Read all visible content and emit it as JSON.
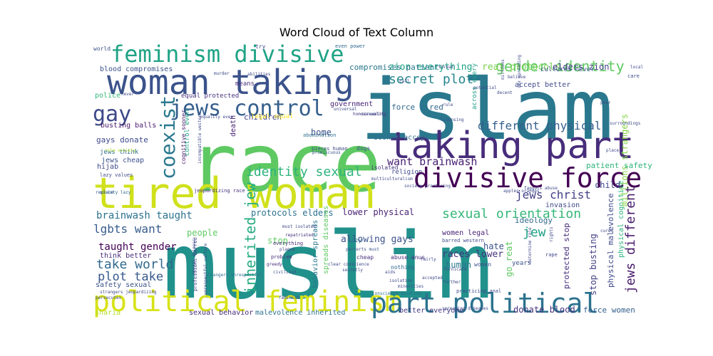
{
  "chart_data": {
    "type": "wordcloud",
    "title": "Word Cloud of Text Column",
    "words": [
      {
        "text": "muslim",
        "color": "#21918c"
      },
      {
        "text": "race",
        "color": "#5ec962"
      },
      {
        "text": "islam",
        "color": "#2a788e"
      },
      {
        "text": "tired woman",
        "color": "#d0e11c"
      },
      {
        "text": "taking part",
        "color": "#472d7b"
      },
      {
        "text": "woman taking",
        "color": "#3b528b"
      },
      {
        "text": "political feminism",
        "color": "#d8e219"
      },
      {
        "text": "part political",
        "color": "#2c728e"
      },
      {
        "text": "divisive force",
        "color": "#440154"
      },
      {
        "text": "feminism divisive",
        "color": "#20a386"
      },
      {
        "text": "jews control",
        "color": "#355f8d"
      },
      {
        "text": "gay",
        "color": "#3e4989"
      },
      {
        "text": "coexist",
        "color": "#2a788e"
      },
      {
        "text": "gender identity",
        "color": "#5ec962"
      },
      {
        "text": "secret plot",
        "color": "#25858e"
      },
      {
        "text": "identity sexual",
        "color": "#2eb37c"
      },
      {
        "text": "sexual orientation",
        "color": "#35b779"
      },
      {
        "text": "different physical",
        "color": "#355f8d"
      },
      {
        "text": "want brainwash",
        "color": "#482173"
      },
      {
        "text": "jews christ",
        "color": "#424086"
      },
      {
        "text": "inherited jew",
        "color": "#25ac82"
      },
      {
        "text": "jews different",
        "color": "#481a6c"
      },
      {
        "text": "take world",
        "color": "#306a8e"
      },
      {
        "text": "plot take",
        "color": "#38588c"
      },
      {
        "text": "lgbts want",
        "color": "#375b8d"
      },
      {
        "text": "brainwash taught",
        "color": "#2c728e"
      },
      {
        "text": "taught gender",
        "color": "#440154"
      },
      {
        "text": "jew",
        "color": "#1fa187"
      },
      {
        "text": "zion everything",
        "color": "#20a486"
      },
      {
        "text": "reat protocols",
        "color": "#7ad151"
      },
      {
        "text": "elders zion",
        "color": "#433e85"
      },
      {
        "text": "protocols elders",
        "color": "#2c728e"
      },
      {
        "text": "lower physical",
        "color": "#482374"
      },
      {
        "text": "allowing gays",
        "color": "#3b528b"
      },
      {
        "text": "races lower",
        "color": "#46327e"
      },
      {
        "text": "force tired",
        "color": "#31688e"
      },
      {
        "text": "compromises patient",
        "color": "#2a788e"
      },
      {
        "text": "blood compromises",
        "color": "#3b528b"
      },
      {
        "text": "donate blood",
        "color": "#46337f"
      },
      {
        "text": "force women",
        "color": "#34618d"
      },
      {
        "text": "malevolence inherited",
        "color": "#2c728e"
      },
      {
        "text": "better everyone",
        "color": "#443983"
      },
      {
        "text": "sexual behavior",
        "color": "#472c7a"
      },
      {
        "text": "spreads diseases",
        "color": "#5ec962"
      },
      {
        "text": "behavior spreads",
        "color": "#2a788e"
      },
      {
        "text": "stop busting",
        "color": "#424086"
      },
      {
        "text": "protected stop",
        "color": "#472d7b"
      },
      {
        "text": "go reat",
        "color": "#5ec962"
      },
      {
        "text": "physical malevolence",
        "color": "#3e4989"
      },
      {
        "text": "physical cognitive",
        "color": "#2db27d"
      },
      {
        "text": "millions strangers",
        "color": "#86d549"
      },
      {
        "text": "patient safety",
        "color": "#2eb37c"
      },
      {
        "text": "accept better",
        "color": "#3e4989"
      },
      {
        "text": "cultures never",
        "color": "#3b528b"
      },
      {
        "text": "equal protected",
        "color": "#46327e"
      },
      {
        "text": "gays donate",
        "color": "#3e4989"
      },
      {
        "text": "busting balls",
        "color": "#48186a"
      },
      {
        "text": "jews think",
        "color": "#2e6e8e"
      },
      {
        "text": "jews cheap",
        "color": "#3b528b"
      },
      {
        "text": "control even",
        "color": "#20a386"
      },
      {
        "text": "cognitive sooner",
        "color": "#48186a"
      },
      {
        "text": "government",
        "color": "#482677"
      },
      {
        "text": "children",
        "color": "#414487"
      },
      {
        "text": "home",
        "color": "#3b528b"
      },
      {
        "text": "death",
        "color": "#482475"
      },
      {
        "text": "sooner accept",
        "color": "#2e6e8e"
      },
      {
        "text": "ideology",
        "color": "#31688e"
      },
      {
        "text": "invasion",
        "color": "#3e4989"
      },
      {
        "text": "women legal",
        "color": "#482475"
      },
      {
        "text": "hate",
        "color": "#3b528b"
      },
      {
        "text": "child",
        "color": "#3e4989"
      },
      {
        "text": "human",
        "color": "#2a788e"
      },
      {
        "text": "people",
        "color": "#5ec962"
      },
      {
        "text": "stop",
        "color": "#5ec962"
      },
      {
        "text": "think better",
        "color": "#472c7a"
      },
      {
        "text": "police",
        "color": "#35b779"
      },
      {
        "text": "safety sexual",
        "color": "#3b528b"
      },
      {
        "text": "sharia",
        "color": "#b5de2b"
      },
      {
        "text": "hijab",
        "color": "#3e4989"
      },
      {
        "text": "means",
        "color": "#472c7a"
      },
      {
        "text": "legal equal",
        "color": "#fde725"
      },
      {
        "text": "across every",
        "color": "#1f9e89"
      },
      {
        "text": "abomination",
        "color": "#2e6e8e"
      },
      {
        "text": "pieces human",
        "color": "#3e4989"
      },
      {
        "text": "promiscuous",
        "color": "#3b528b"
      },
      {
        "text": "dogs",
        "color": "#3b528b"
      },
      {
        "text": "religion",
        "color": "#3e4989"
      },
      {
        "text": "isolated",
        "color": "#46327e"
      },
      {
        "text": "lazy",
        "color": "#2e6e8e"
      },
      {
        "text": "cheap",
        "color": "#46327e"
      },
      {
        "text": "homosexuality",
        "color": "#443983"
      },
      {
        "text": "abuse anus",
        "color": "#472c7a"
      },
      {
        "text": "nothing",
        "color": "#31688e"
      },
      {
        "text": "years",
        "color": "#3b528b"
      },
      {
        "text": "women",
        "color": "#3b528b"
      },
      {
        "text": "world",
        "color": "#3b528b"
      },
      {
        "text": "try",
        "color": "#3e4989"
      },
      {
        "text": "even power",
        "color": "#31688e"
      },
      {
        "text": "jeopardizing race",
        "color": "#46327e"
      },
      {
        "text": "strangers jeopardizing",
        "color": "#3e4989"
      },
      {
        "text": "strangers unrespectful",
        "color": "#2e6e8e"
      },
      {
        "text": "mental illness",
        "color": "#3e4989"
      },
      {
        "text": "incompatible western",
        "color": "#3e4989"
      },
      {
        "text": "lazy values",
        "color": "#3e4989"
      },
      {
        "text": "role society",
        "color": "#b5de2b"
      },
      {
        "text": "society lazy",
        "color": "#31688e"
      },
      {
        "text": "replace",
        "color": "#3b528b"
      },
      {
        "text": "must isolated",
        "color": "#3e4989"
      },
      {
        "text": "perverts must",
        "color": "#3b528b"
      },
      {
        "text": "repatriated",
        "color": "#46327e"
      },
      {
        "text": "everything",
        "color": "#472c7a"
      },
      {
        "text": "problem",
        "color": "#472c7a"
      },
      {
        "text": "civilized",
        "color": "#3b528b"
      },
      {
        "text": "greedy",
        "color": "#472c7a"
      },
      {
        "text": "professions barred",
        "color": "#3e4989"
      },
      {
        "text": "unrespectful culture",
        "color": "#3e4989"
      },
      {
        "text": "barred western",
        "color": "#3e4989"
      },
      {
        "text": "practicing anal",
        "color": "#3e4989"
      },
      {
        "text": "spreading diseases",
        "color": "#3e4989"
      },
      {
        "text": "conscience donating",
        "color": "#2e6e8e"
      },
      {
        "text": "clear conscience",
        "color": "#3e4989"
      },
      {
        "text": "secretly",
        "color": "#3e4989"
      },
      {
        "text": "faggots abuse",
        "color": "#3e4989"
      },
      {
        "text": "apples oranges",
        "color": "#3e4989"
      },
      {
        "text": "society practicing",
        "color": "#3e4989"
      },
      {
        "text": "multiculturalism",
        "color": "#3e4989"
      },
      {
        "text": "persecutes",
        "color": "#3e4989"
      },
      {
        "text": "murder",
        "color": "#3e4989"
      },
      {
        "text": "abilities",
        "color": "#3e4989"
      },
      {
        "text": "equality even",
        "color": "#3e4989"
      },
      {
        "text": "universal",
        "color": "#3e4989"
      },
      {
        "text": "licensing",
        "color": "#3e4989"
      },
      {
        "text": "screening",
        "color": "#3e4989"
      },
      {
        "text": "aids",
        "color": "#3e4989"
      },
      {
        "text": "fornicate",
        "color": "#3e4989"
      },
      {
        "text": "isolation",
        "color": "#3e4989"
      },
      {
        "text": "minorities",
        "color": "#3e4989"
      },
      {
        "text": "fairly",
        "color": "#3e4989"
      },
      {
        "text": "accepted",
        "color": "#3e4989"
      },
      {
        "text": "rape",
        "color": "#3e4989"
      },
      {
        "text": "cured",
        "color": "#3e4989"
      },
      {
        "text": "place",
        "color": "#3e4989"
      },
      {
        "text": "care",
        "color": "#3e4989"
      },
      {
        "text": "local",
        "color": "#3e4989"
      },
      {
        "text": "poor",
        "color": "#3e4989"
      },
      {
        "text": "believe",
        "color": "#3e4989"
      },
      {
        "text": "threat",
        "color": "#3e4989"
      },
      {
        "text": "rule",
        "color": "#3e4989"
      },
      {
        "text": "potential",
        "color": "#3e4989"
      },
      {
        "text": "decent",
        "color": "#3e4989"
      },
      {
        "text": "millions",
        "color": "#3e4989"
      },
      {
        "text": "sex spreading",
        "color": "#3e4989"
      },
      {
        "text": "call",
        "color": "#3e4989"
      },
      {
        "text": "feminist",
        "color": "#3e4989"
      },
      {
        "text": "further",
        "color": "#3e4989"
      },
      {
        "text": "plague",
        "color": "#3e4989"
      },
      {
        "text": "rights",
        "color": "#3e4989"
      },
      {
        "text": "never",
        "color": "#3e4989"
      },
      {
        "text": "surroundings",
        "color": "#3e4989"
      },
      {
        "text": "determine role",
        "color": "#3e4989"
      }
    ]
  }
}
